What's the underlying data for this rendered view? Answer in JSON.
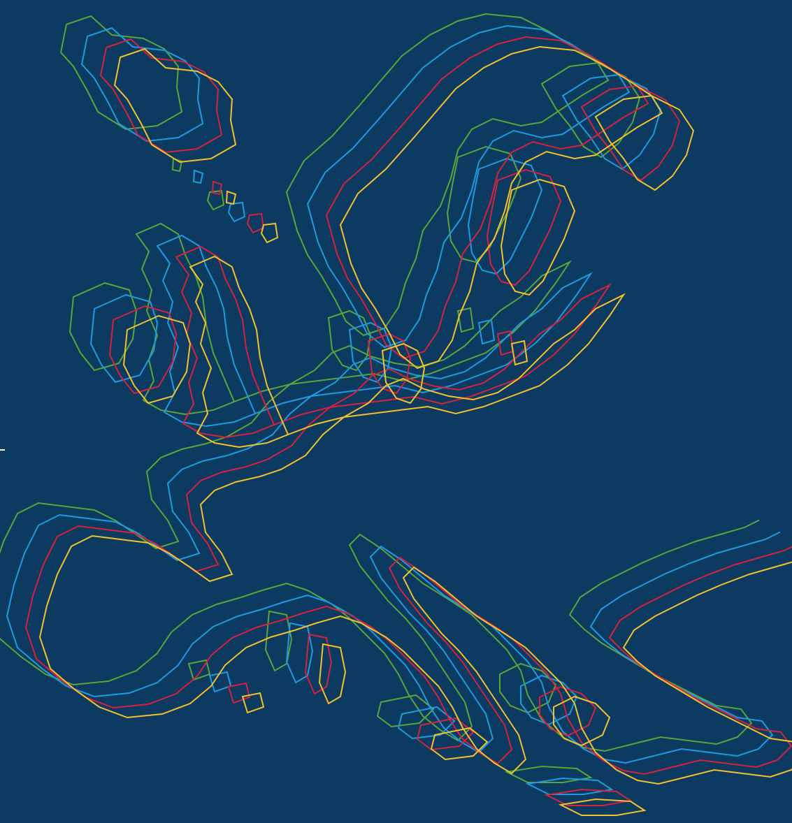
{
  "map": {
    "background_color": "#0d3a61",
    "series": [
      {
        "color": "#5aa53a"
      },
      {
        "color": "#1e9be0"
      },
      {
        "color": "#d4223f"
      },
      {
        "color": "#f2c12e"
      }
    ]
  }
}
